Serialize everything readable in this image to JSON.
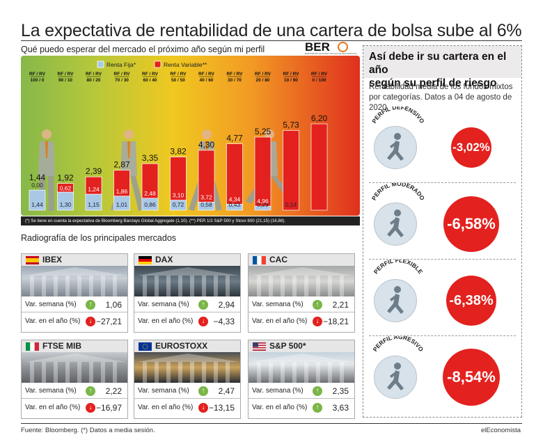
{
  "title": "La expectativa de rentabilidad de una cartera de bolsa sube al 6%",
  "subtitle": "Qué puedo esperar del mercado el próximo año según mi perfil",
  "logo": {
    "text": "BER",
    "small": "BARÓMETRO DE EXPECTATIVAS DE RENTABILIDAD"
  },
  "chart_data": {
    "type": "bar",
    "categories": [
      "RF / RV 100 / 0",
      "RF / RV 90 / 10",
      "RF / RV 80 / 20",
      "RF / RV 70 / 30",
      "RF / RV 60 / 40",
      "RF / RV 50 / 50",
      "RF / RV 40 / 60",
      "RF / RV 30 / 70",
      "RF / RV 20 / 80",
      "RF / RV 10 / 90",
      "RF / RV 0 / 100"
    ],
    "series": [
      {
        "name": "Renta Fija*",
        "color": "#a9c8e6",
        "values": [
          1.44,
          1.3,
          1.15,
          1.01,
          0.86,
          0.72,
          0.58,
          0.43,
          0.29,
          0.14,
          null
        ]
      },
      {
        "name": "Renta Variable**",
        "color": "#e3211e",
        "values": [
          0.0,
          0.62,
          1.24,
          1.86,
          2.48,
          3.1,
          3.72,
          4.34,
          4.96,
          null,
          null
        ]
      }
    ],
    "totals": [
      1.44,
      1.92,
      2.39,
      2.87,
      3.35,
      3.82,
      4.3,
      4.77,
      5.25,
      5.73,
      6.2
    ],
    "ylim": [
      0,
      6.6
    ]
  },
  "chart_labels": {
    "rf_labels": [
      "1,44",
      "1,30",
      "1,15",
      "1,01",
      "0,86",
      "0,72",
      "0,58",
      "0,43",
      "0,29",
      "0,14",
      ""
    ],
    "rv_labels": [
      "0,00",
      "0,62",
      "1,24",
      "1,86",
      "2,48",
      "3,10",
      "3,72",
      "4,34",
      "4,96",
      "",
      ""
    ],
    "total_labels": [
      "1,44",
      "1,92",
      "2,39",
      "2,87",
      "3,35",
      "3,82",
      "4,30",
      "4,77",
      "5,25",
      "5,73",
      "6,20"
    ],
    "cat_top": [
      "RF / RV",
      "RF / RV",
      "RF / RV",
      "RF / RV",
      "RF / RV",
      "RF / RV",
      "RF / RV",
      "RF / RV",
      "RF / RV",
      "RF / RV",
      "RF / RV"
    ],
    "cat_bottom": [
      "100 / 0",
      "90 / 10",
      "80 / 20",
      "70 / 30",
      "60 / 40",
      "50 / 50",
      "40 / 60",
      "30 / 70",
      "20 / 80",
      "10 / 90",
      "0 / 100"
    ]
  },
  "footnote": "(*) Se tiene en cuenta la expectativa de Bloomberg Barclays Global Aggregate (1,10). (**) PER 1/2 S&P 500 y Stoxx 600 (21,15) (16,88).",
  "right_panel": {
    "title_line1": "Así debe ir su cartera en el año",
    "title_line2": "según su perfil de riesgo",
    "desc": "Rentabilidad media de los fondos mixtos por categorías. Datos a 04 de agosto de 2020",
    "profiles": [
      {
        "name": "PERFIL DEFENSIVO",
        "value": "-3,02%"
      },
      {
        "name": "PERFIL MODERADO",
        "value": "-6,58%"
      },
      {
        "name": "PERFIL FLEXIBLE",
        "value": "-6,38%"
      },
      {
        "name": "PERFIL AGRESIVO",
        "value": "-8,54%"
      }
    ]
  },
  "markets_title": "Radiografía de los principales mercados",
  "markets": [
    {
      "name": "IBEX",
      "week_label": "Var. semana (%)",
      "week": "1,06",
      "week_up": true,
      "year_label": "Var. en el año (%)",
      "year": "−27,21",
      "year_up": false
    },
    {
      "name": "DAX",
      "week_label": "Var. semana (%)",
      "week": "2,94",
      "week_up": true,
      "year_label": "Var. en el año (%)",
      "year": "−4,33",
      "year_up": false
    },
    {
      "name": "CAC",
      "week_label": "Var. semana (%)",
      "week": "2,21",
      "week_up": true,
      "year_label": "Var. en el año (%)",
      "year": "−18,21",
      "year_up": false
    },
    {
      "name": "FTSE MIB",
      "week_label": "Var. semana (%)",
      "week": "2,22",
      "week_up": true,
      "year_label": "Var. en el año (%)",
      "year": "−16,97",
      "year_up": false
    },
    {
      "name": "EUROSTOXX",
      "week_label": "Var. semana (%)",
      "week": "2,47",
      "week_up": true,
      "year_label": "Var. en el año (%)",
      "year": "−13,15",
      "year_up": false
    },
    {
      "name": "S&P 500*",
      "week_label": "Var. semana (%)",
      "week": "2,35",
      "week_up": true,
      "year_label": "Var. en el año (%)",
      "year": "3,63",
      "year_up": true
    }
  ],
  "colors": {
    "up": "#7ab648",
    "down": "#e3211e",
    "accent": "#e3211e"
  },
  "source": "Fuente: Bloomberg. (*) Datos a media sesión.",
  "brand": "elEconomista"
}
